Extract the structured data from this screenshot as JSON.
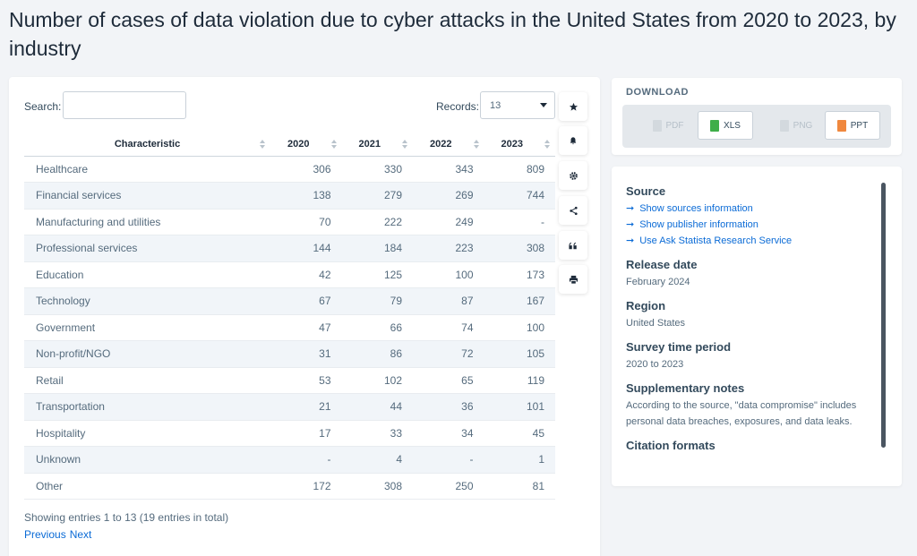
{
  "title": "Number of cases of data violation due to cyber attacks in the United States from 2020 to 2023, by industry",
  "controls": {
    "search_label": "Search:",
    "search_value": "",
    "records_label": "Records:",
    "records_value": "13"
  },
  "table": {
    "headers": [
      "Characteristic",
      "2020",
      "2021",
      "2022",
      "2023"
    ],
    "rows": [
      [
        "Healthcare",
        "306",
        "330",
        "343",
        "809"
      ],
      [
        "Financial services",
        "138",
        "279",
        "269",
        "744"
      ],
      [
        "Manufacturing and utilities",
        "70",
        "222",
        "249",
        "-"
      ],
      [
        "Professional services",
        "144",
        "184",
        "223",
        "308"
      ],
      [
        "Education",
        "42",
        "125",
        "100",
        "173"
      ],
      [
        "Technology",
        "67",
        "79",
        "87",
        "167"
      ],
      [
        "Government",
        "47",
        "66",
        "74",
        "100"
      ],
      [
        "Non-profit/NGO",
        "31",
        "86",
        "72",
        "105"
      ],
      [
        "Retail",
        "53",
        "102",
        "65",
        "119"
      ],
      [
        "Transportation",
        "21",
        "44",
        "36",
        "101"
      ],
      [
        "Hospitality",
        "17",
        "33",
        "34",
        "45"
      ],
      [
        "Unknown",
        "-",
        "4",
        "-",
        "1"
      ],
      [
        "Other",
        "172",
        "308",
        "250",
        "81"
      ]
    ]
  },
  "footer": {
    "entries": "Showing entries 1 to 13 (19 entries in total)",
    "previous": "Previous",
    "next": "Next"
  },
  "actions": [
    "star-icon",
    "bell-icon",
    "gear-icon",
    "share-icon",
    "quote-icon",
    "print-icon"
  ],
  "download": {
    "title": "DOWNLOAD",
    "buttons": [
      {
        "label": "PDF",
        "enabled": false,
        "color": "#b6c0c9"
      },
      {
        "label": "XLS",
        "enabled": true,
        "color": "#3fae49"
      },
      {
        "label": "PNG",
        "enabled": false,
        "color": "#b6c0c9"
      },
      {
        "label": "PPT",
        "enabled": true,
        "color": "#f0883e"
      }
    ]
  },
  "info": {
    "source_heading": "Source",
    "source_links": [
      "Show sources information",
      "Show publisher information",
      "Use Ask Statista Research Service"
    ],
    "release_heading": "Release date",
    "release_value": "February 2024",
    "region_heading": "Region",
    "region_value": "United States",
    "period_heading": "Survey time period",
    "period_value": "2020 to 2023",
    "notes_heading": "Supplementary notes",
    "notes_value": "According to the source, \"data compromise\" includes personal data breaches, exposures, and data leaks.",
    "citation_heading": "Citation formats"
  },
  "colors": {
    "link": "#0b6bd6",
    "accent": "#0b6bd6",
    "text": "#334a5c"
  }
}
